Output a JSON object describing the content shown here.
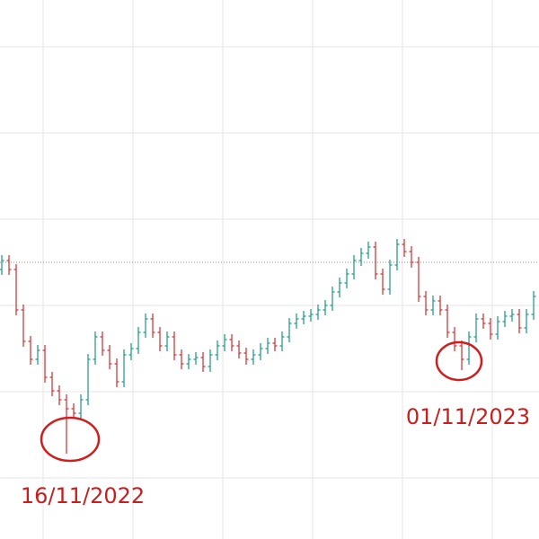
{
  "chart_data": {
    "type": "ohlc",
    "up_color": "#2a9d8f",
    "down_color": "#d33a3a",
    "ylim": [
      0,
      600
    ],
    "reference_line": 308,
    "open": [
      300,
      310,
      300,
      255,
      220,
      200,
      210,
      180,
      165,
      155,
      145,
      140,
      155,
      200,
      225,
      210,
      195,
      175,
      205,
      212,
      230,
      245,
      230,
      215,
      225,
      205,
      195,
      200,
      202,
      192,
      205,
      215,
      222,
      215,
      207,
      200,
      205,
      212,
      218,
      215,
      225,
      240,
      245,
      248,
      250,
      255,
      260,
      275,
      285,
      295,
      310,
      318,
      325,
      295,
      278,
      305,
      328,
      320,
      308,
      270,
      255,
      265,
      255,
      230,
      215,
      200,
      225,
      245,
      240,
      228,
      242,
      248,
      250,
      235,
      250
    ],
    "high": [
      316,
      316,
      306,
      261,
      226,
      216,
      216,
      186,
      171,
      161,
      151,
      161,
      206,
      231,
      231,
      216,
      201,
      211,
      218,
      236,
      251,
      251,
      236,
      231,
      231,
      211,
      206,
      208,
      208,
      211,
      221,
      228,
      228,
      221,
      213,
      211,
      218,
      224,
      224,
      231,
      246,
      251,
      254,
      256,
      261,
      266,
      281,
      291,
      301,
      316,
      324,
      331,
      331,
      301,
      311,
      334,
      334,
      326,
      314,
      276,
      271,
      271,
      261,
      236,
      221,
      231,
      251,
      251,
      246,
      248,
      254,
      256,
      256,
      256,
      276
    ],
    "low": [
      294,
      294,
      249,
      214,
      194,
      194,
      174,
      159,
      149,
      95,
      134,
      134,
      149,
      194,
      204,
      189,
      169,
      169,
      199,
      206,
      224,
      224,
      209,
      209,
      199,
      189,
      189,
      194,
      186,
      186,
      199,
      209,
      209,
      201,
      194,
      194,
      199,
      206,
      209,
      209,
      219,
      234,
      239,
      242,
      244,
      249,
      254,
      269,
      279,
      289,
      304,
      312,
      289,
      272,
      272,
      299,
      314,
      302,
      264,
      249,
      249,
      249,
      224,
      209,
      188,
      194,
      219,
      234,
      222,
      222,
      236,
      242,
      229,
      229,
      244
    ],
    "close": [
      310,
      300,
      255,
      220,
      200,
      210,
      180,
      165,
      155,
      145,
      140,
      155,
      200,
      225,
      210,
      195,
      175,
      205,
      212,
      230,
      245,
      230,
      215,
      225,
      205,
      195,
      200,
      202,
      192,
      205,
      215,
      222,
      215,
      207,
      200,
      205,
      212,
      218,
      215,
      225,
      240,
      245,
      248,
      250,
      255,
      260,
      275,
      285,
      295,
      310,
      318,
      325,
      295,
      278,
      305,
      328,
      320,
      308,
      270,
      255,
      265,
      255,
      230,
      215,
      200,
      225,
      245,
      240,
      228,
      242,
      248,
      250,
      235,
      250,
      270
    ],
    "annotations": [
      {
        "text": "16/11/2022"
      },
      {
        "text": "01/11/2023"
      }
    ]
  }
}
